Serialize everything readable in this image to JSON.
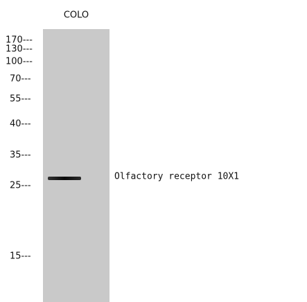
{
  "lane_label": "COLO",
  "markers": [
    "170---",
    "130---",
    "100---",
    "70---",
    "55---",
    "40---",
    "35---",
    "25---",
    "15---"
  ],
  "band_label": "Olfactory receptor 10X1"
}
